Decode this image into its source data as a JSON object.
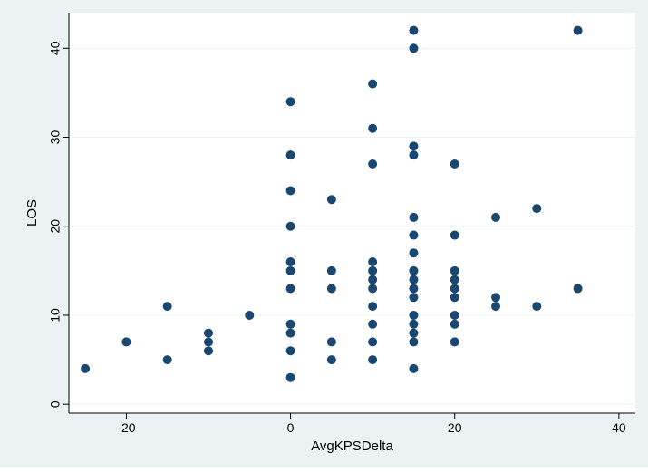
{
  "colors": {
    "outer_background": "#eaf2f3",
    "plot_background": "#ffffff",
    "marker": "#1a476f",
    "grid": "#eaf2f3",
    "axis": "#000000"
  },
  "chart_data": {
    "type": "scatter",
    "title": "",
    "xlabel": "AvgKPSDelta",
    "ylabel": "LOS",
    "xlim": [
      -27,
      42
    ],
    "ylim": [
      -1,
      44
    ],
    "xticks": [
      -20,
      0,
      20,
      40
    ],
    "yticks": [
      0,
      10,
      20,
      30,
      40
    ],
    "grid": true,
    "legend": "none",
    "points": [
      [
        -25,
        4
      ],
      [
        -20,
        7
      ],
      [
        -15,
        11
      ],
      [
        -15,
        5
      ],
      [
        -10,
        8
      ],
      [
        -10,
        7
      ],
      [
        -10,
        6
      ],
      [
        -5,
        10
      ],
      [
        0,
        34
      ],
      [
        0,
        28
      ],
      [
        0,
        24
      ],
      [
        0,
        20
      ],
      [
        0,
        16
      ],
      [
        0,
        15
      ],
      [
        0,
        13
      ],
      [
        0,
        9
      ],
      [
        0,
        8
      ],
      [
        0,
        6
      ],
      [
        0,
        3
      ],
      [
        5,
        23
      ],
      [
        5,
        15
      ],
      [
        5,
        13
      ],
      [
        5,
        7
      ],
      [
        5,
        5
      ],
      [
        10,
        36
      ],
      [
        10,
        31
      ],
      [
        10,
        27
      ],
      [
        10,
        16
      ],
      [
        10,
        15
      ],
      [
        10,
        14
      ],
      [
        10,
        13
      ],
      [
        10,
        11
      ],
      [
        10,
        9
      ],
      [
        10,
        7
      ],
      [
        10,
        5
      ],
      [
        15,
        42
      ],
      [
        15,
        40
      ],
      [
        15,
        29
      ],
      [
        15,
        28
      ],
      [
        15,
        21
      ],
      [
        15,
        19
      ],
      [
        15,
        17
      ],
      [
        15,
        15
      ],
      [
        15,
        14
      ],
      [
        15,
        13
      ],
      [
        15,
        12
      ],
      [
        15,
        10
      ],
      [
        15,
        9
      ],
      [
        15,
        8
      ],
      [
        15,
        7
      ],
      [
        15,
        4
      ],
      [
        20,
        27
      ],
      [
        20,
        19
      ],
      [
        20,
        15
      ],
      [
        20,
        14
      ],
      [
        20,
        13
      ],
      [
        20,
        12
      ],
      [
        20,
        10
      ],
      [
        20,
        9
      ],
      [
        20,
        7
      ],
      [
        25,
        21
      ],
      [
        25,
        12
      ],
      [
        25,
        11
      ],
      [
        30,
        22
      ],
      [
        30,
        11
      ],
      [
        35,
        42
      ],
      [
        35,
        13
      ]
    ]
  }
}
